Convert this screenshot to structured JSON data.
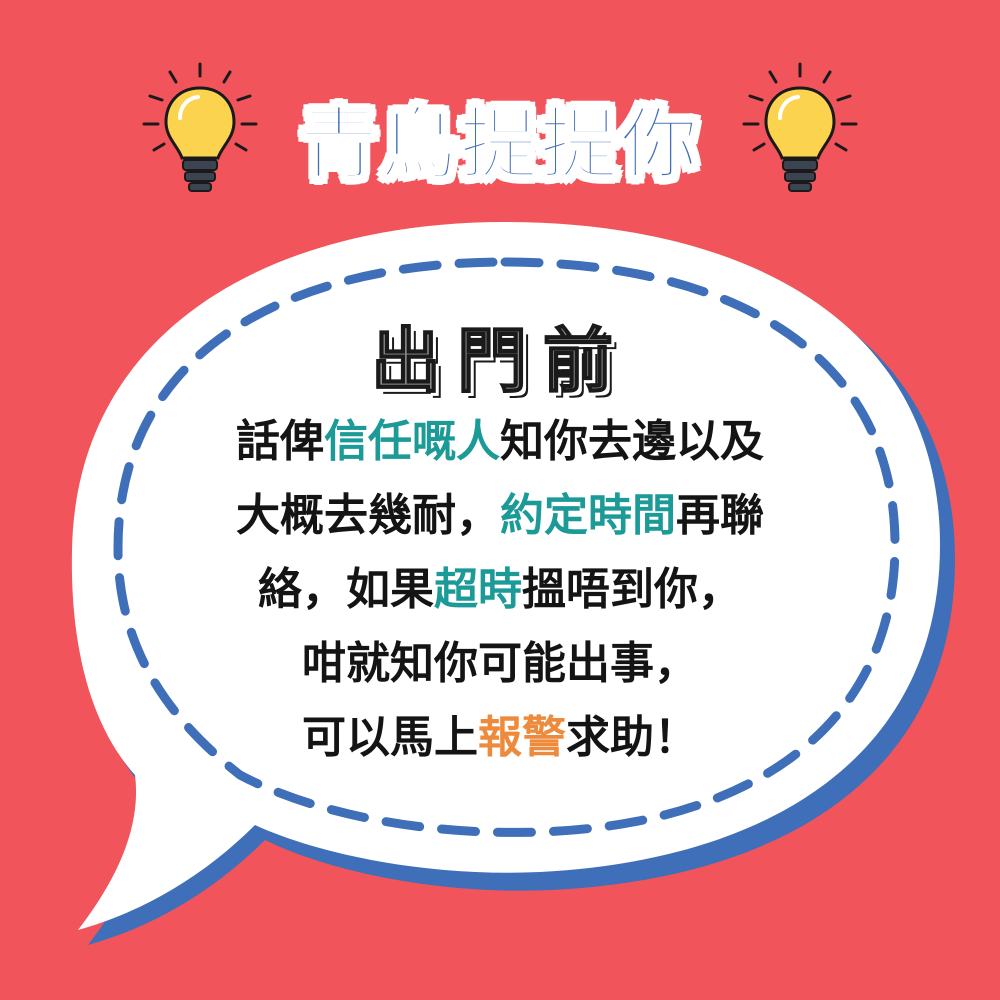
{
  "title": "青鳥提提你",
  "heading": "出門前",
  "message": {
    "line1": {
      "a": "話俾",
      "b": "信任嘅人",
      "c": "知你去邊以及"
    },
    "line2": {
      "a": "大概去幾耐，",
      "b": "約定時間",
      "c": "再聯"
    },
    "line3": {
      "a": "絡，如果",
      "b": "超時",
      "c": "搵唔到你，"
    },
    "line4": {
      "a": "咁就知你可能出事，"
    },
    "line5": {
      "a": "可以馬上",
      "b": "報警",
      "c": "求助！"
    }
  },
  "colors": {
    "background": "#f2545b",
    "accent_blue": "#3f6fb8",
    "highlight_teal": "#1b9a97",
    "highlight_orange": "#ee8a3b",
    "bulb_yellow": "#fbd34f"
  },
  "icons": {
    "left": "lightbulb-icon",
    "right": "lightbulb-icon"
  }
}
